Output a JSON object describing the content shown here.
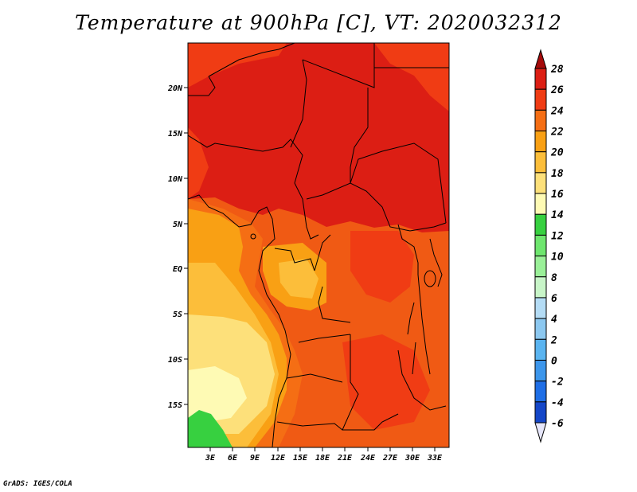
{
  "title": "Temperature at 900hPa [C], VT: 2020032312",
  "credit": "GrADS: IGES/COLA",
  "map": {
    "lon_labels": [
      "3E",
      "6E",
      "9E",
      "12E",
      "15E",
      "18E",
      "21E",
      "24E",
      "27E",
      "30E",
      "33E"
    ],
    "lat_labels": [
      "20N",
      "15N",
      "10N",
      "5N",
      "EQ",
      "5S",
      "10S",
      "15S"
    ]
  },
  "colorbar": {
    "labels": [
      "28",
      "26",
      "24",
      "22",
      "20",
      "18",
      "16",
      "14",
      "12",
      "10",
      "8",
      "6",
      "4",
      "2",
      "0",
      "-2",
      "-4",
      "-6"
    ],
    "colors": [
      "#a50a0a",
      "#dc1e14",
      "#f03c14",
      "#f56e14",
      "#f9a014",
      "#fcbe3a",
      "#fde07a",
      "#fefab4",
      "#37d040",
      "#6ee66e",
      "#9af098",
      "#c8f5c8",
      "#b4dcf5",
      "#8cc8f0",
      "#5ab4f0",
      "#3c96eb",
      "#1e6ee6",
      "#1446c8",
      "#0a1e96",
      "#000064"
    ],
    "low_end_color": "#e6e6fa",
    "high_end_color": "#a50a0a"
  }
}
